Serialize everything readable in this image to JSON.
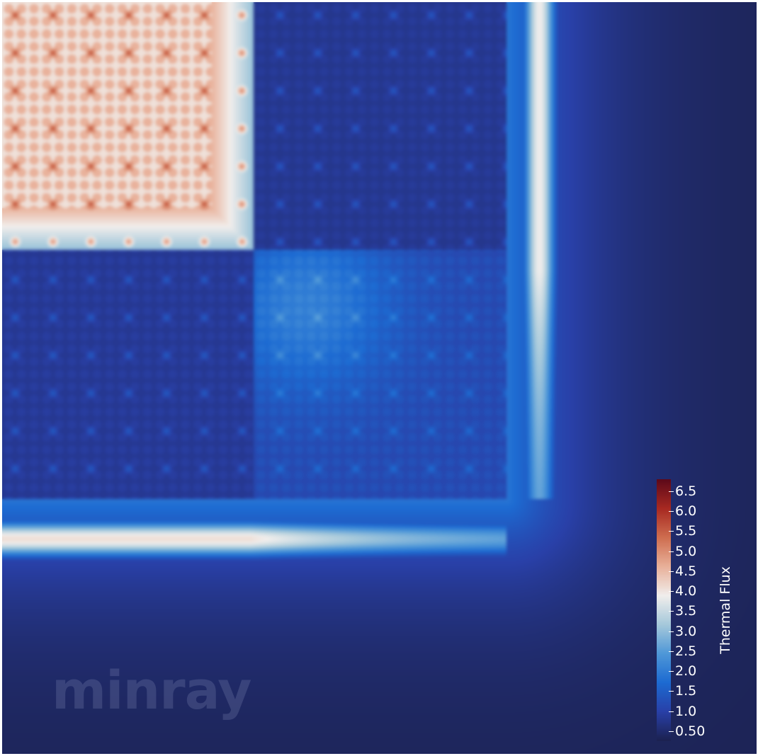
{
  "watermark": "minray",
  "colorbar": {
    "title": "Thermal Flux",
    "range": [
      0.25,
      6.8
    ],
    "tick_labels": [
      "6.5",
      "6.0",
      "5.5",
      "5.0",
      "4.5",
      "4.0",
      "3.5",
      "3.0",
      "2.5",
      "2.0",
      "1.5",
      "1.0",
      "0.50"
    ],
    "tick_values": [
      6.5,
      6.0,
      5.5,
      5.0,
      4.5,
      4.0,
      3.5,
      3.0,
      2.5,
      2.0,
      1.5,
      1.0,
      0.5
    ],
    "colormap": [
      "#1c2251",
      "#2940a8",
      "#1d6bd2",
      "#4f98d8",
      "#a6c9db",
      "#f1eeec",
      "#e9b19a",
      "#cf6e50",
      "#a82a22",
      "#5e0a1a"
    ]
  }
}
